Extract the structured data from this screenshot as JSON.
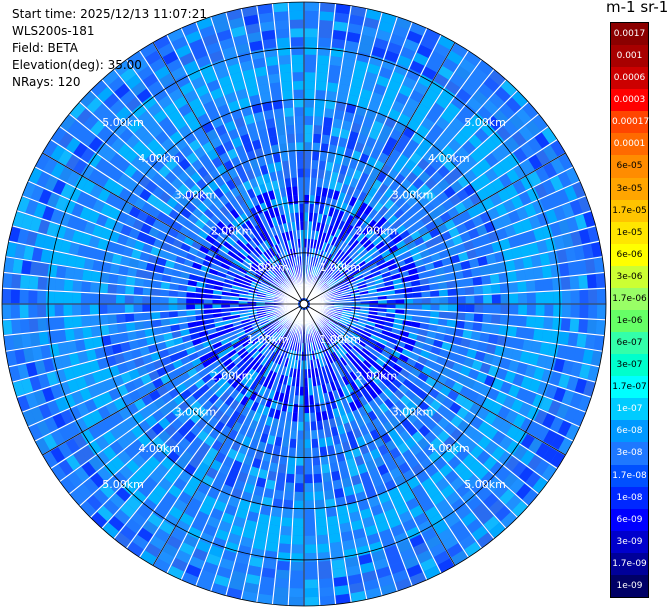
{
  "info": {
    "start_time": "Start time: 2025/12/13 11:07:21",
    "system": "WLS200s-181",
    "field": "Field: BETA",
    "elevation": "Elevation(deg): 35.00",
    "nrays": "NRays: 120"
  },
  "colorbar": {
    "title": "m-1 sr-1",
    "labels": [
      "0.0017",
      "0.001",
      "0.0006",
      "0.0003",
      "0.00017",
      "0.0001",
      "6e-05",
      "3e-05",
      "1.7e-05",
      "1e-05",
      "6e-06",
      "3e-06",
      "1.7e-06",
      "1e-06",
      "6e-07",
      "3e-07",
      "1.7e-07",
      "1e-07",
      "6e-08",
      "3e-08",
      "1.7e-08",
      "1e-08",
      "6e-09",
      "3e-09",
      "1.7e-09",
      "1e-09"
    ],
    "colors": [
      "#8b0000",
      "#a80000",
      "#cc0000",
      "#ff0000",
      "#ff4500",
      "#ff6a00",
      "#ff8c00",
      "#ffa500",
      "#ffc400",
      "#ffe600",
      "#ffff00",
      "#ccff33",
      "#99ff66",
      "#66ff66",
      "#33ffaa",
      "#00ffcc",
      "#00ffff",
      "#00ccff",
      "#0099ff",
      "#1e78ff",
      "#0050ff",
      "#0028ff",
      "#0000ff",
      "#0000cc",
      "#000099",
      "#000066"
    ]
  },
  "chart_data": {
    "type": "heatmap",
    "projection": "polar (PPI)",
    "rays": 120,
    "elevation_deg": 35.0,
    "range_rings_km": [
      1,
      2,
      3,
      4,
      5
    ],
    "max_range_km": 5.9,
    "ring_labels": [
      "1.00km",
      "2.00km",
      "3.00km",
      "4.00km",
      "5.00km"
    ],
    "value_range": [
      1e-09,
      0.0017
    ],
    "scale": "log",
    "field": "BETA",
    "typical_values": {
      "near_center": "3e-08 to 1e-08",
      "mid_range": "3e-08",
      "ring_4_5km": "1e-07"
    }
  }
}
